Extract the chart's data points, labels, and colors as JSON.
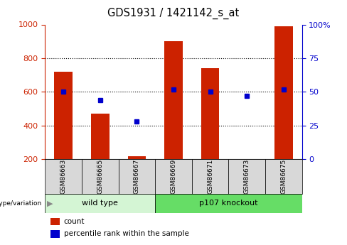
{
  "title": "GDS1931 / 1421142_s_at",
  "samples": [
    "GSM86663",
    "GSM86665",
    "GSM86667",
    "GSM86669",
    "GSM86671",
    "GSM86673",
    "GSM86675"
  ],
  "counts": [
    720,
    470,
    220,
    900,
    740,
    200,
    990
  ],
  "percentile_ranks": [
    50,
    44,
    28,
    52,
    50,
    47,
    52
  ],
  "bar_color": "#cc2200",
  "dot_color": "#0000cc",
  "ylim_left": [
    200,
    1000
  ],
  "ylim_right": [
    0,
    100
  ],
  "yticks_left": [
    200,
    400,
    600,
    800,
    1000
  ],
  "yticks_right": [
    0,
    25,
    50,
    75,
    100
  ],
  "bar_width": 0.5,
  "bar_bottom": 200,
  "label_count": "count",
  "label_pct": "percentile rank within the sample",
  "tick_label_color_left": "#cc2200",
  "tick_label_color_right": "#0000cc",
  "group_row_color_wt": "#d4f5d4",
  "group_row_color_ko": "#66dd66",
  "sample_row_color": "#d8d8d8"
}
